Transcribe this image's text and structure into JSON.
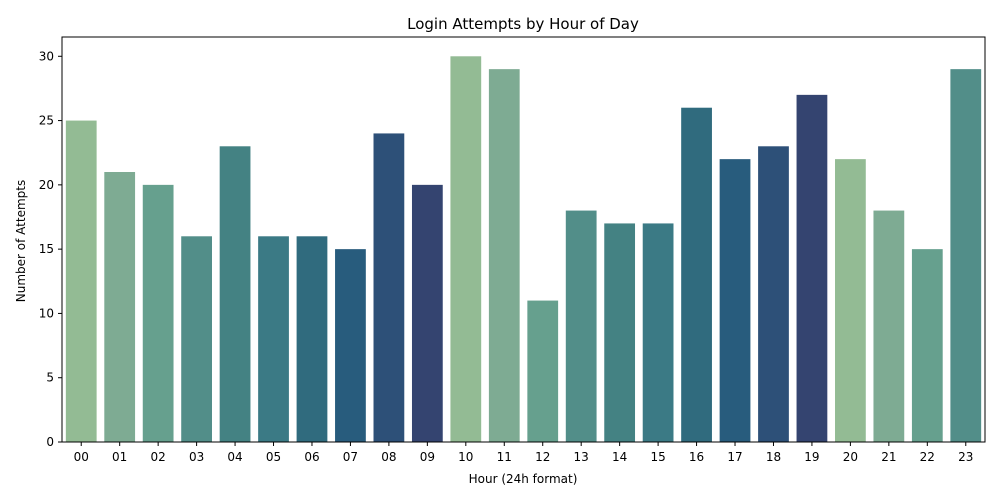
{
  "chart_data": {
    "type": "bar",
    "title": "Login Attempts by Hour of Day",
    "xlabel": "Hour (24h format)",
    "ylabel": "Number of Attempts",
    "categories": [
      "00",
      "01",
      "02",
      "03",
      "04",
      "05",
      "06",
      "07",
      "08",
      "09",
      "10",
      "11",
      "12",
      "13",
      "14",
      "15",
      "16",
      "17",
      "18",
      "19",
      "20",
      "21",
      "22",
      "23"
    ],
    "values": [
      25,
      21,
      20,
      16,
      23,
      16,
      16,
      15,
      24,
      20,
      30,
      29,
      11,
      18,
      17,
      17,
      26,
      22,
      23,
      27,
      22,
      18,
      15,
      29
    ],
    "colors": [
      "#93bb94",
      "#7eab93",
      "#66a08e",
      "#528e89",
      "#448283",
      "#3b7a85",
      "#306b7e",
      "#285c7d",
      "#2d5078",
      "#344470",
      "#93bb94",
      "#7eab93",
      "#66a08e",
      "#528e89",
      "#448283",
      "#3b7a85",
      "#306b7e",
      "#285c7d",
      "#2d5078",
      "#344470",
      "#93bb94",
      "#7eab93",
      "#66a08e",
      "#528e89"
    ],
    "ylim": [
      0,
      31.5
    ],
    "yticks": [
      0,
      5,
      10,
      15,
      20,
      25,
      30
    ],
    "grid": false,
    "legend": "none"
  }
}
